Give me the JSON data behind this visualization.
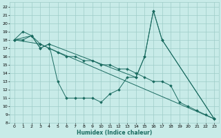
{
  "xlabel": "Humidex (Indice chaleur)",
  "bg_color": "#c8ebe8",
  "grid_color": "#9eccc8",
  "line_color": "#1a6b60",
  "xlim": [
    -0.5,
    23.5
  ],
  "ylim": [
    8,
    22.5
  ],
  "xticks": [
    0,
    1,
    2,
    3,
    4,
    5,
    6,
    7,
    8,
    9,
    10,
    11,
    12,
    13,
    14,
    15,
    16,
    17,
    18,
    19,
    20,
    21,
    22,
    23
  ],
  "yticks": [
    8,
    9,
    10,
    11,
    12,
    13,
    14,
    15,
    16,
    17,
    18,
    19,
    20,
    21,
    22
  ],
  "lines": [
    {
      "x": [
        0,
        1,
        2,
        3,
        4,
        5,
        6,
        7,
        8,
        9,
        10,
        11,
        12,
        13,
        14,
        15,
        16,
        17,
        23
      ],
      "y": [
        18,
        19,
        18.5,
        17,
        17.5,
        13,
        11,
        11,
        11,
        11,
        10.5,
        11.5,
        12,
        13.5,
        13.5,
        16,
        21.5,
        18,
        8.5
      ]
    },
    {
      "x": [
        0,
        1,
        2,
        3,
        4,
        5,
        6,
        7,
        8,
        9,
        10,
        11,
        12,
        13,
        14,
        15,
        16,
        17,
        18,
        19,
        20,
        21,
        22,
        23
      ],
      "y": [
        18,
        18,
        18.5,
        17.5,
        17,
        16.5,
        16,
        16,
        15.5,
        15.5,
        15,
        15,
        14.5,
        14.5,
        14,
        13.5,
        13,
        13,
        12.5,
        10.5,
        10,
        9.5,
        9,
        8.5
      ]
    },
    {
      "x": [
        0,
        2,
        3,
        4,
        14,
        15,
        16,
        17,
        23
      ],
      "y": [
        18,
        18.5,
        17,
        17.5,
        13.5,
        16,
        21.5,
        18,
        8.5
      ]
    },
    {
      "x": [
        0,
        3,
        4,
        23
      ],
      "y": [
        18,
        17.5,
        17,
        8.5
      ]
    }
  ]
}
